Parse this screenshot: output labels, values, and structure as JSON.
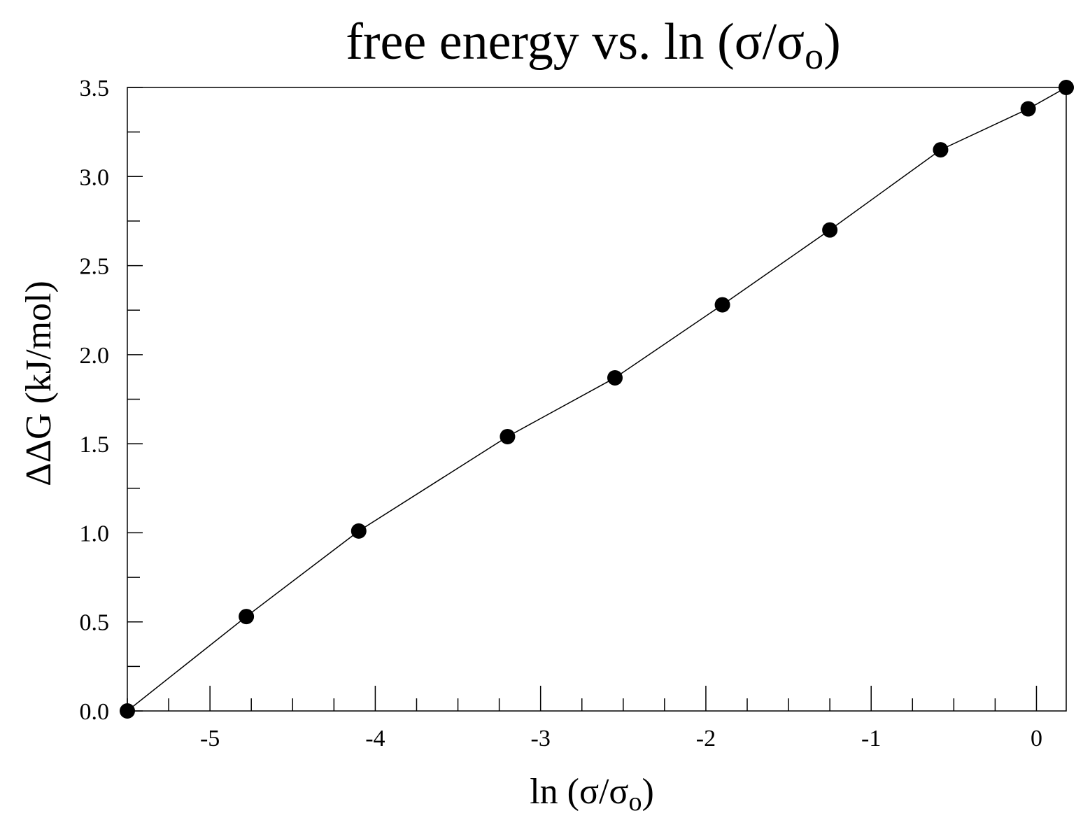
{
  "chart_data": {
    "type": "line",
    "title": {
      "main": "free energy vs. ln (σ/σ",
      "sub": "o",
      "end": ")"
    },
    "xlabel": {
      "main": "ln (σ/σ",
      "sub": "o",
      "end": ")"
    },
    "ylabel": "ΔΔG (kJ/mol)",
    "xlim": [
      -5.5,
      0.18
    ],
    "ylim": [
      0.0,
      3.5
    ],
    "x_ticks_major": [
      -5,
      -4,
      -3,
      -2,
      -1,
      0
    ],
    "x_tick_labels": [
      "-5",
      "-4",
      "-3",
      "-2",
      "-1",
      "0"
    ],
    "y_ticks_major": [
      0.0,
      0.5,
      1.0,
      1.5,
      2.0,
      2.5,
      3.0,
      3.5
    ],
    "y_tick_labels": [
      "0.0",
      "0.5",
      "1.0",
      "1.5",
      "2.0",
      "2.5",
      "3.0",
      "3.5"
    ],
    "grid": false,
    "legend": "none",
    "series": [
      {
        "marker": "filled-circle",
        "color": "#000000",
        "points": [
          {
            "x": -5.5,
            "y": 0.0
          },
          {
            "x": -4.78,
            "y": 0.53
          },
          {
            "x": -4.1,
            "y": 1.01
          },
          {
            "x": -3.2,
            "y": 1.54
          },
          {
            "x": -2.55,
            "y": 1.87
          },
          {
            "x": -1.9,
            "y": 2.28
          },
          {
            "x": -1.25,
            "y": 2.7
          },
          {
            "x": -0.58,
            "y": 3.15
          },
          {
            "x": -0.05,
            "y": 3.38
          },
          {
            "x": 0.18,
            "y": 3.5
          }
        ]
      }
    ]
  }
}
